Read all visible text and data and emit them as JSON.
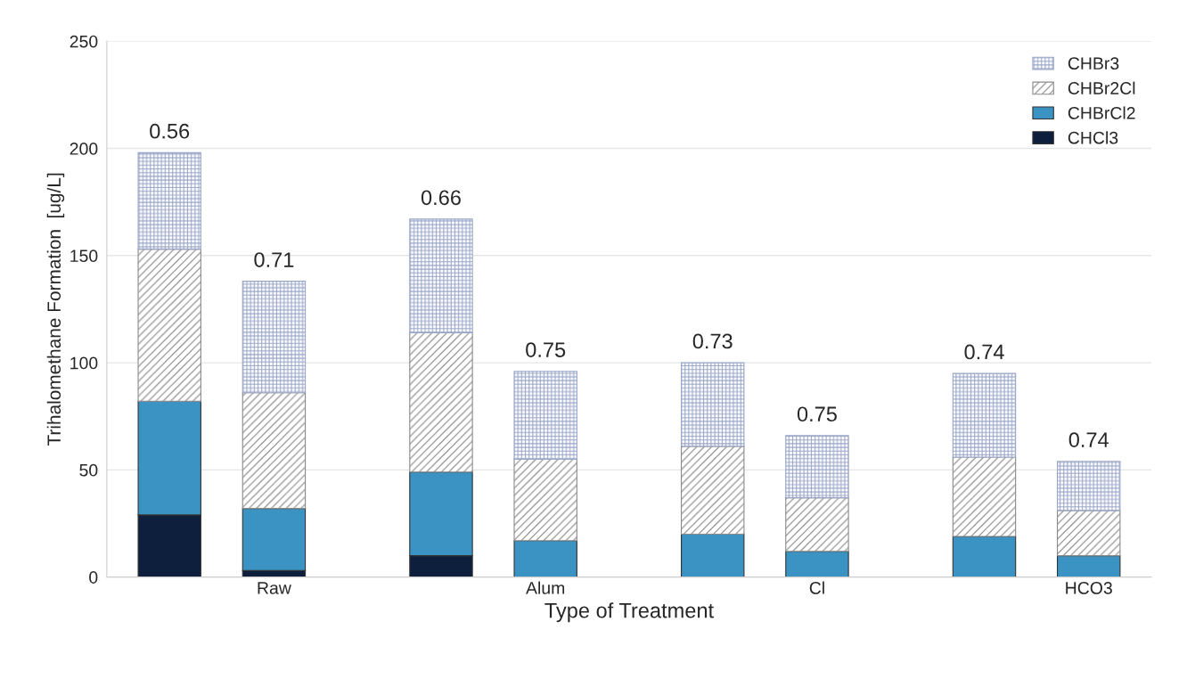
{
  "chart_data": {
    "type": "bar",
    "stacked": true,
    "xlabel": "Type of Treatment",
    "ylabel": "Trihalomethane Formation  [ug/L]",
    "categories": [
      null,
      "Raw",
      null,
      "Alum",
      null,
      "Cl",
      null,
      "HCO3"
    ],
    "series": [
      {
        "name": "CHCl3",
        "color": "#0d1f3d",
        "values": [
          29,
          3,
          10,
          0,
          0,
          0,
          0,
          0
        ]
      },
      {
        "name": "CHBrCl2",
        "color": "#3a93c3",
        "values": [
          53,
          29,
          39,
          17,
          20,
          12,
          19,
          10
        ]
      },
      {
        "name": "CHBr2Cl",
        "color": "#8a8a8a",
        "values": [
          71,
          54,
          65,
          38,
          41,
          25,
          37,
          21
        ]
      },
      {
        "name": "CHBr3",
        "color": "#9aa6c8",
        "values": [
          45,
          52,
          53,
          41,
          39,
          29,
          39,
          23
        ]
      }
    ],
    "annotations": [
      {
        "text": "0.56",
        "y": 198
      },
      {
        "text": "0.71",
        "y": 138
      },
      {
        "text": "0.66",
        "y": 167
      },
      {
        "text": "0.75",
        "y": 96
      },
      {
        "text": "0.73",
        "y": 100
      },
      {
        "text": "0.75",
        "y": 66
      },
      {
        "text": "0.74",
        "y": 95
      },
      {
        "text": "0.74",
        "y": 54
      }
    ],
    "ylim": [
      0,
      250
    ],
    "yticks": [
      0,
      50,
      100,
      150,
      200,
      250
    ],
    "grid": "y",
    "legend": "top right"
  }
}
